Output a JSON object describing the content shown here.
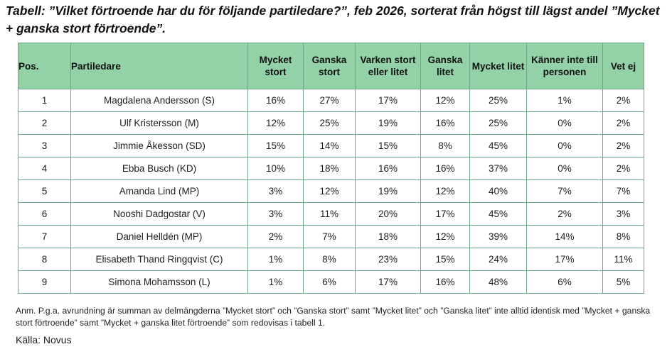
{
  "title": "Tabell: ”Vilket förtroende har du för följande partiledare?”, feb 2026, sorterat från högst till lägst andel ”Mycket + ganska stort förtroende”.",
  "chart_data": {
    "type": "table",
    "columns": [
      "Pos.",
      "Partiledare",
      "Mycket stort",
      "Ganska stort",
      "Varken stort eller litet",
      "Ganska litet",
      "Mycket litet",
      "Känner inte till personen",
      "Vet ej"
    ],
    "rows": [
      [
        "1",
        "Magdalena Andersson (S)",
        "16%",
        "27%",
        "17%",
        "12%",
        "25%",
        "1%",
        "2%"
      ],
      [
        "2",
        "Ulf Kristersson (M)",
        "12%",
        "25%",
        "19%",
        "16%",
        "25%",
        "0%",
        "2%"
      ],
      [
        "3",
        "Jimmie Åkesson (SD)",
        "15%",
        "14%",
        "15%",
        "8%",
        "45%",
        "0%",
        "2%"
      ],
      [
        "4",
        "Ebba Busch (KD)",
        "10%",
        "18%",
        "16%",
        "16%",
        "37%",
        "0%",
        "2%"
      ],
      [
        "5",
        "Amanda Lind (MP)",
        "3%",
        "12%",
        "19%",
        "12%",
        "40%",
        "7%",
        "7%"
      ],
      [
        "6",
        "Nooshi Dadgostar (V)",
        "3%",
        "11%",
        "20%",
        "17%",
        "45%",
        "2%",
        "3%"
      ],
      [
        "7",
        "Daniel Helldén (MP)",
        "2%",
        "7%",
        "18%",
        "12%",
        "39%",
        "14%",
        "8%"
      ],
      [
        "8",
        "Elisabeth Thand Ringqvist (C)",
        "1%",
        "8%",
        "23%",
        "15%",
        "24%",
        "17%",
        "11%"
      ],
      [
        "9",
        "Simona Mohamsson (L)",
        "1%",
        "6%",
        "17%",
        "16%",
        "48%",
        "6%",
        "5%"
      ]
    ]
  },
  "note": "Anm. P.g.a. avrundning är summan av delmängderna ”Mycket stort” och ”Ganska stort” samt ”Mycket litet” och ”Ganska litet” inte alltid identisk med ”Mycket + ganska stort förtroende” samt ”Mycket + ganska litet förtroende” som redovisas i tabell 1.",
  "source": "Källa: Novus",
  "colors": {
    "header_bg": "#93d1a7",
    "border": "#6fa889"
  }
}
